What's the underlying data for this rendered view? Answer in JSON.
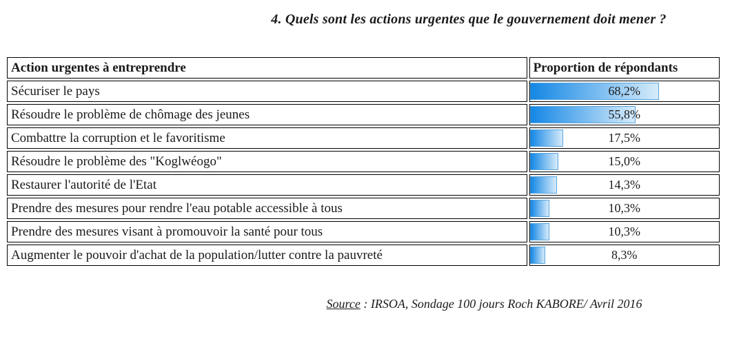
{
  "title": "4. Quels sont les actions urgentes que le gouvernement doit mener ?",
  "table": {
    "col1_header": "Action urgentes à entreprendre",
    "col2_header": "Proportion de répondants",
    "rows": [
      {
        "label": "Sécuriser le pays",
        "value": 68.2,
        "display": "68,2%"
      },
      {
        "label": "Résoudre le problème de chômage des jeunes",
        "value": 55.8,
        "display": "55,8%"
      },
      {
        "label": "Combattre la corruption et le favoritisme",
        "value": 17.5,
        "display": "17,5%"
      },
      {
        "label": "Résoudre le problème des \"Koglwéogo\"",
        "value": 15.0,
        "display": "15,0%"
      },
      {
        "label": "Restaurer l'autorité de l'Etat",
        "value": 14.3,
        "display": "14,3%"
      },
      {
        "label": "Prendre des mesures pour rendre l'eau potable accessible à tous",
        "value": 10.3,
        "display": "10,3%"
      },
      {
        "label": "Prendre des mesures visant à promouvoir la santé pour tous",
        "value": 10.3,
        "display": "10,3%"
      },
      {
        "label": "Augmenter le pouvoir d'achat de la population/lutter contre la pauvreté",
        "value": 8.3,
        "display": "8,3%"
      }
    ]
  },
  "source": {
    "label": "Source",
    "text": ": IRSOA, Sondage 100 jours Roch KABORE/ Avril 2016"
  },
  "colors": {
    "bar_gradient_start": "#1487E5",
    "bar_gradient_end": "#D6EBFA",
    "bar_border": "#55A4DE",
    "cell_border": "#000000",
    "text": "#1a1a1a"
  },
  "chart_data": {
    "type": "bar",
    "orientation": "horizontal",
    "title": "4. Quels sont les actions urgentes que le gouvernement doit mener ?",
    "categories": [
      "Sécuriser le pays",
      "Résoudre le problème de chômage des jeunes",
      "Combattre la corruption et le favoritisme",
      "Résoudre le problème des \"Koglwéogo\"",
      "Restaurer l'autorité de l'Etat",
      "Prendre des mesures pour rendre l'eau potable accessible à tous",
      "Prendre des mesures visant à promouvoir la santé pour tous",
      "Augmenter le pouvoir d'achat de la population/lutter contre la pauvreté"
    ],
    "values": [
      68.2,
      55.8,
      17.5,
      15.0,
      14.3,
      10.3,
      10.3,
      8.3
    ],
    "value_labels": [
      "68,2%",
      "55,8%",
      "17,5%",
      "15,0%",
      "14,3%",
      "10,3%",
      "10,3%",
      "8,3%"
    ],
    "xlabel": "Proportion de répondants",
    "ylabel": "Action urgentes à entreprendre",
    "xlim": [
      0,
      100
    ],
    "grid": false,
    "legend": "none",
    "source": "Source : IRSOA, Sondage 100 jours Roch KABORE/ Avril 2016"
  }
}
